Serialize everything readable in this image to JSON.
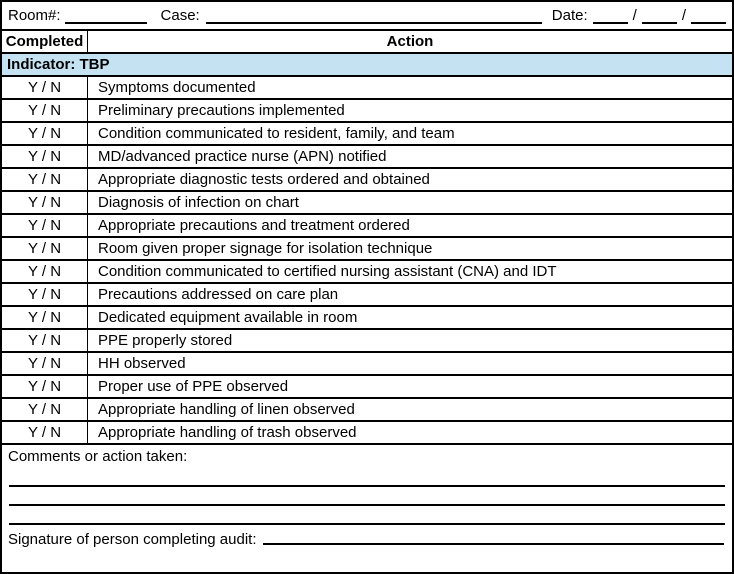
{
  "header": {
    "room_label": "Room#:",
    "case_label": "Case:",
    "date_label": "Date:",
    "date_separator": "/"
  },
  "table": {
    "columns": {
      "completed": "Completed",
      "action": "Action"
    },
    "indicator": "Indicator: TBP",
    "yn_label": "Y / N",
    "rows": [
      "Symptoms documented",
      "Preliminary precautions implemented",
      "Condition communicated to resident, family, and team",
      "MD/advanced practice nurse (APN) notified",
      "Appropriate diagnostic tests ordered and obtained",
      "Diagnosis of infection on chart",
      "Appropriate precautions and treatment ordered",
      "Room given proper signage for isolation technique",
      "Condition communicated to certified nursing assistant (CNA) and IDT",
      "Precautions addressed on care plan",
      "Dedicated equipment available in room",
      "PPE properly stored",
      "HH observed",
      "Proper use of PPE observed",
      "Appropriate handling of linen observed",
      "Appropriate handling of trash observed"
    ]
  },
  "footer": {
    "comments_label": "Comments or action taken:",
    "signature_label": "Signature of person completing audit:"
  },
  "colors": {
    "indicator_bg": "#c5e2f3",
    "border": "#000000"
  }
}
